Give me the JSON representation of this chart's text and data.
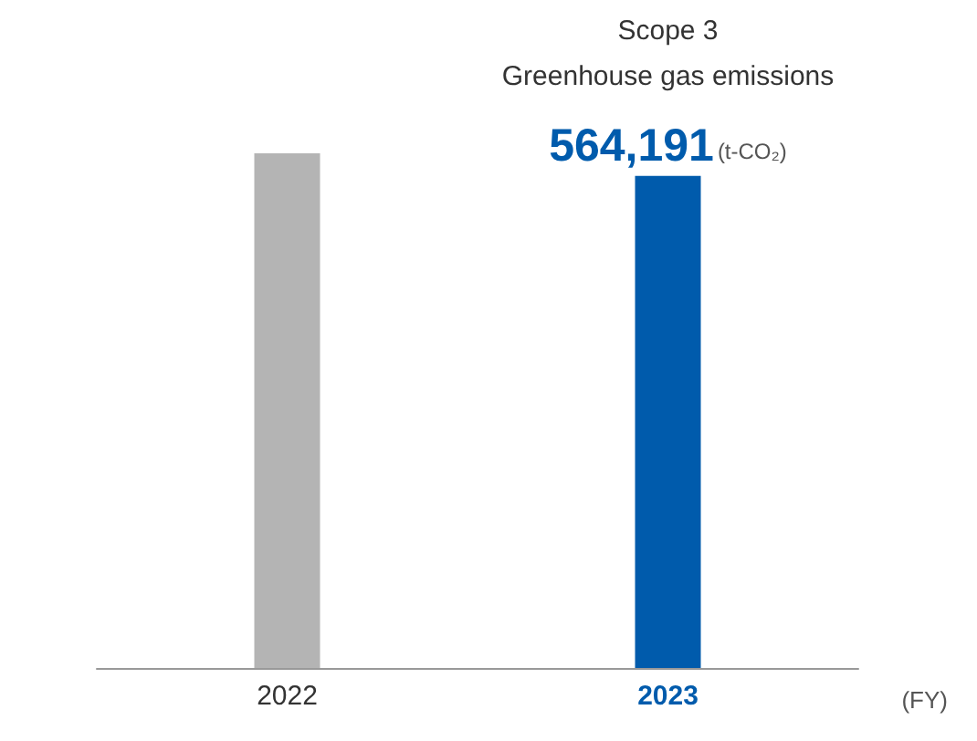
{
  "chart_data": {
    "type": "bar",
    "categories": [
      "2022",
      "2023"
    ],
    "values": [
      590000,
      564191
    ],
    "colors": [
      "#b4b4b4",
      "#005bac"
    ],
    "value_labels": [
      null,
      "564,191"
    ],
    "ylabel": "(t-CO₂)",
    "xlabel": "(FY)",
    "annotations": [
      "Scope 3\nGreenhouse gas emissions"
    ],
    "grid": false
  }
}
